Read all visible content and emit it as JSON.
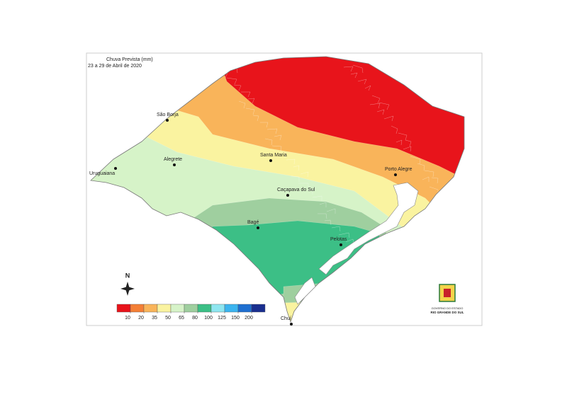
{
  "title": "Chuva Prevista (mm)",
  "subtitle": "23 a 29 de Abril de 2020",
  "cities": [
    "Uruguaiana",
    "São Borja",
    "Alegrete",
    "Santa Maria",
    "Caçapava do Sul",
    "Bagé",
    "Pelotas",
    "Porto Alegre",
    "Chuí"
  ],
  "compass": "N",
  "legend": {
    "ticks": [
      10,
      20,
      35,
      50,
      65,
      80,
      100,
      125,
      150,
      200
    ],
    "colors": [
      "#e8141b",
      "#f47f36",
      "#f9b45a",
      "#faf3a0",
      "#d6f3c8",
      "#9fcf9f",
      "#3cbf86",
      "#8fe6f0",
      "#3cb4ef",
      "#1f6fd0",
      "#1a2f8f"
    ]
  },
  "logo": {
    "line1": "GOVERNO DO ESTADO",
    "line2": "RIO GRANDE DO SUL"
  }
}
